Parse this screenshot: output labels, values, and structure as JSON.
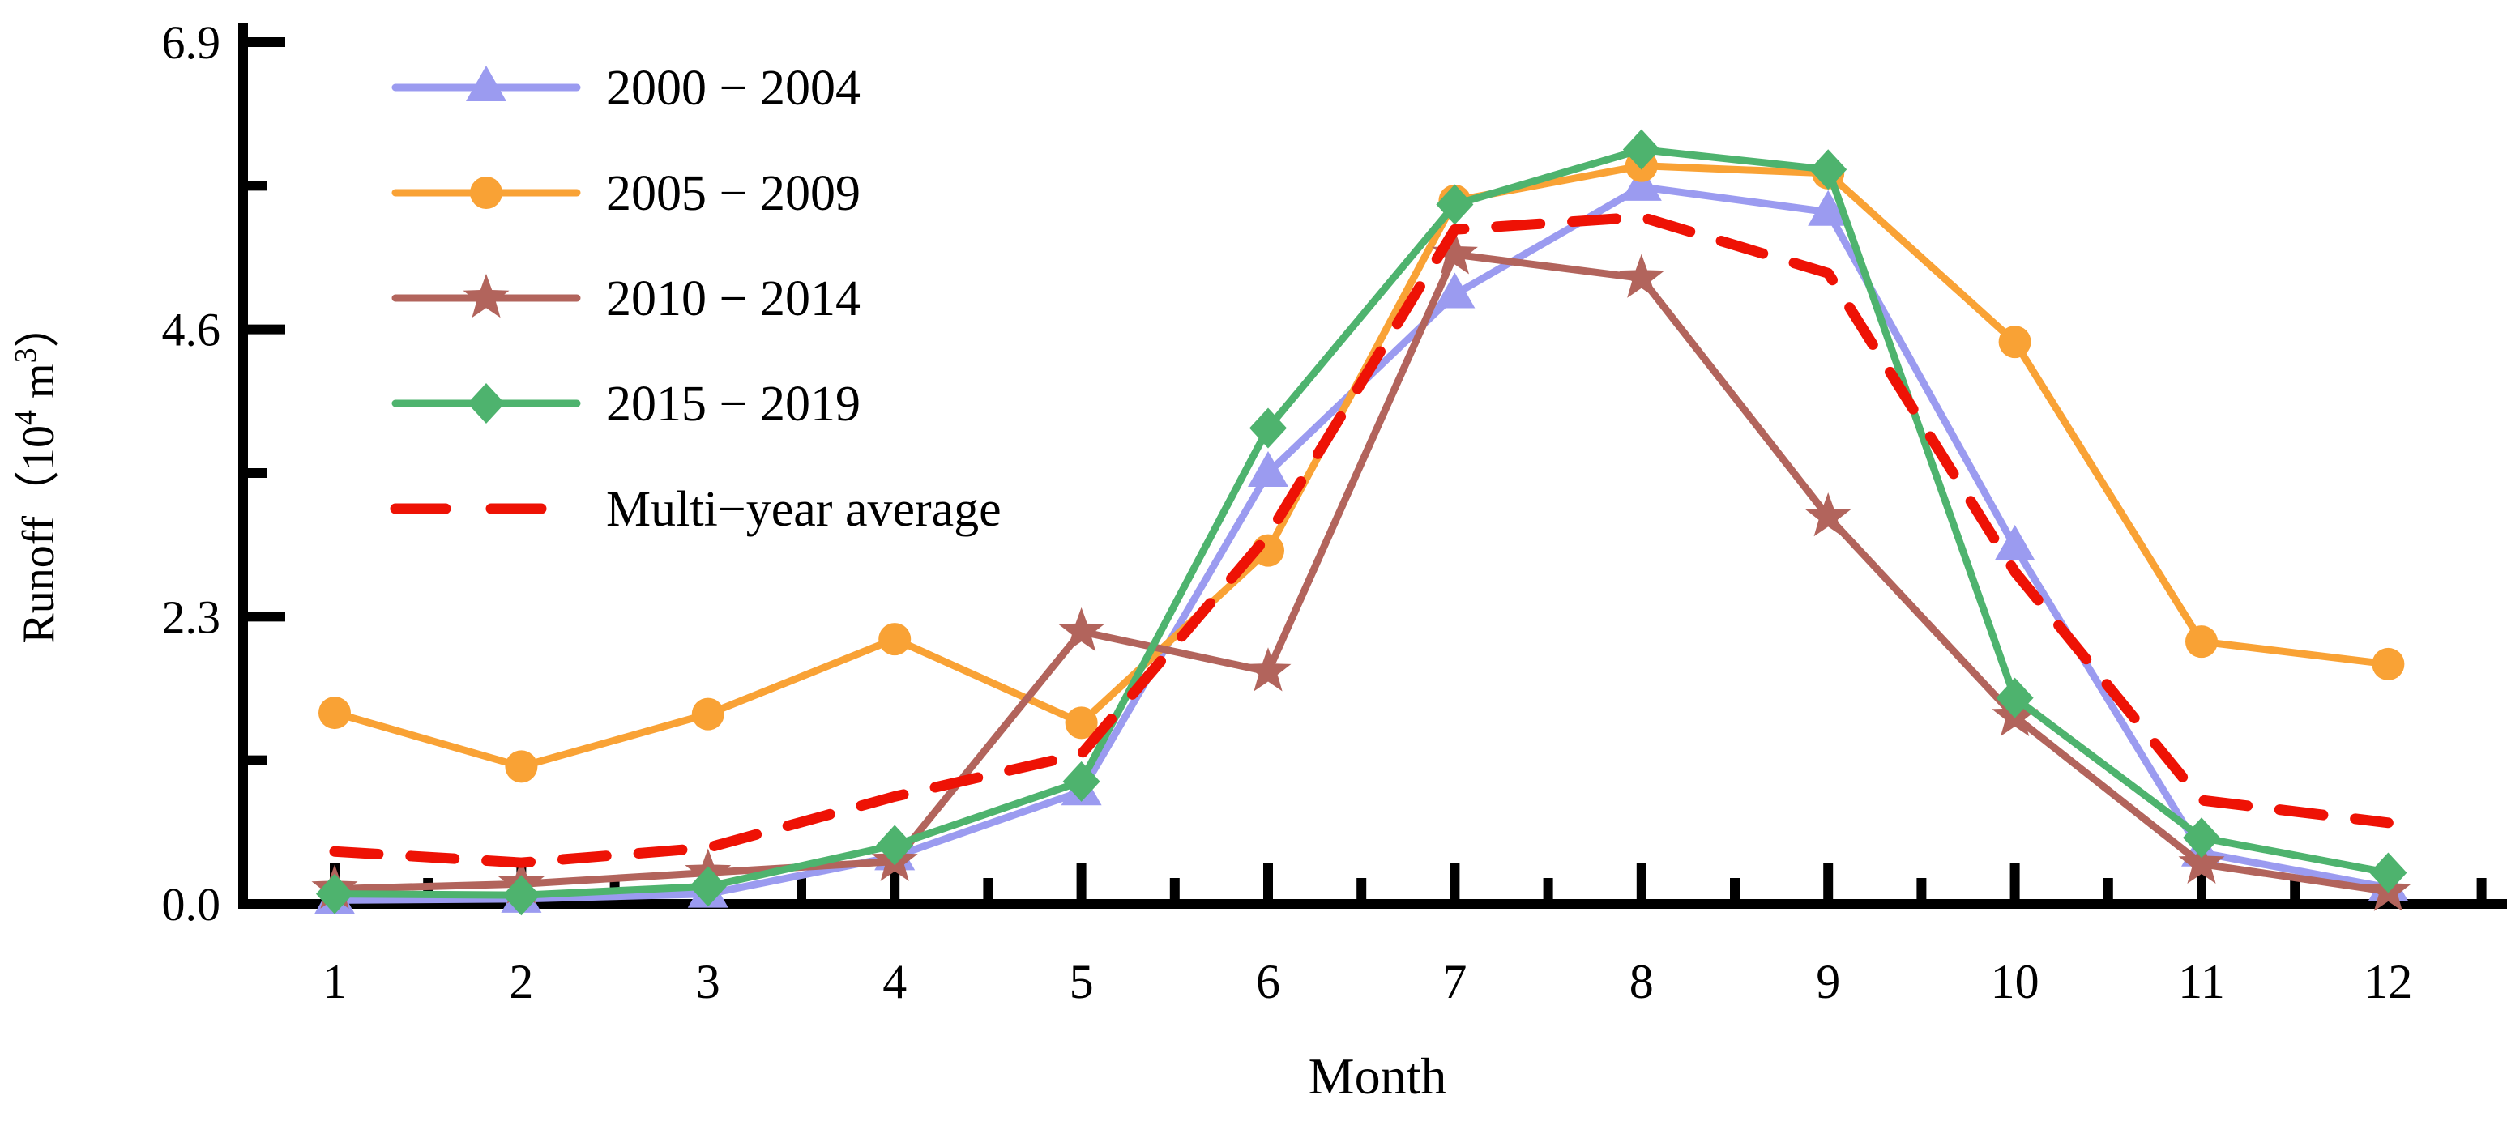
{
  "figure": {
    "background": "#ffffff",
    "axis_color": "#000000"
  },
  "chart_data": {
    "type": "line",
    "title": "",
    "xlabel": "Month",
    "ylabel_parts": {
      "prefix": "Runoff（10",
      "sup1": "4",
      "mid": " m",
      "sup2": "3",
      "suffix": "）"
    },
    "x": [
      1,
      2,
      3,
      4,
      5,
      6,
      7,
      8,
      9,
      10,
      11,
      12
    ],
    "xtick_labels": [
      "1",
      "2",
      "3",
      "4",
      "5",
      "6",
      "7",
      "8",
      "9",
      "10",
      "11",
      "12"
    ],
    "yticks": [
      0.0,
      2.3,
      4.6,
      6.9
    ],
    "ytick_labels": [
      "0.0",
      "2.3",
      "4.6",
      "6.9"
    ],
    "yminor_ticks": [
      1.15,
      3.45,
      5.75
    ],
    "ylim": [
      0,
      6.9
    ],
    "grid": "off",
    "legend_position": "upper-left",
    "series": [
      {
        "name": "2000 − 2004",
        "color": "#9b9bf0",
        "marker": "triangle",
        "dashed": false,
        "values": [
          0.03,
          0.04,
          0.08,
          0.38,
          0.9,
          3.45,
          4.88,
          5.74,
          5.54,
          2.86,
          0.41,
          0.13
        ]
      },
      {
        "name": "2005 − 2009",
        "color": "#f9a235",
        "marker": "circle",
        "dashed": false,
        "values": [
          1.53,
          1.1,
          1.52,
          2.12,
          1.45,
          2.83,
          5.63,
          5.91,
          5.85,
          4.5,
          2.1,
          1.92
        ]
      },
      {
        "name": "2010 − 2014",
        "color": "#b2645c",
        "marker": "star",
        "dashed": false,
        "values": [
          0.12,
          0.16,
          0.25,
          0.34,
          2.18,
          1.86,
          5.2,
          5.01,
          3.1,
          1.5,
          0.32,
          0.1
        ]
      },
      {
        "name": "2015 − 2019",
        "color": "#4eb36e",
        "marker": "diamond",
        "dashed": false,
        "values": [
          0.08,
          0.07,
          0.14,
          0.47,
          0.98,
          3.81,
          5.6,
          6.04,
          5.88,
          1.65,
          0.53,
          0.25
        ]
      },
      {
        "name": "Multi−year average",
        "color": "#ee1205",
        "marker": "none",
        "dashed": true,
        "values": [
          0.42,
          0.33,
          0.45,
          0.86,
          1.2,
          2.95,
          5.4,
          5.5,
          5.05,
          2.66,
          0.83,
          0.65
        ]
      }
    ]
  }
}
